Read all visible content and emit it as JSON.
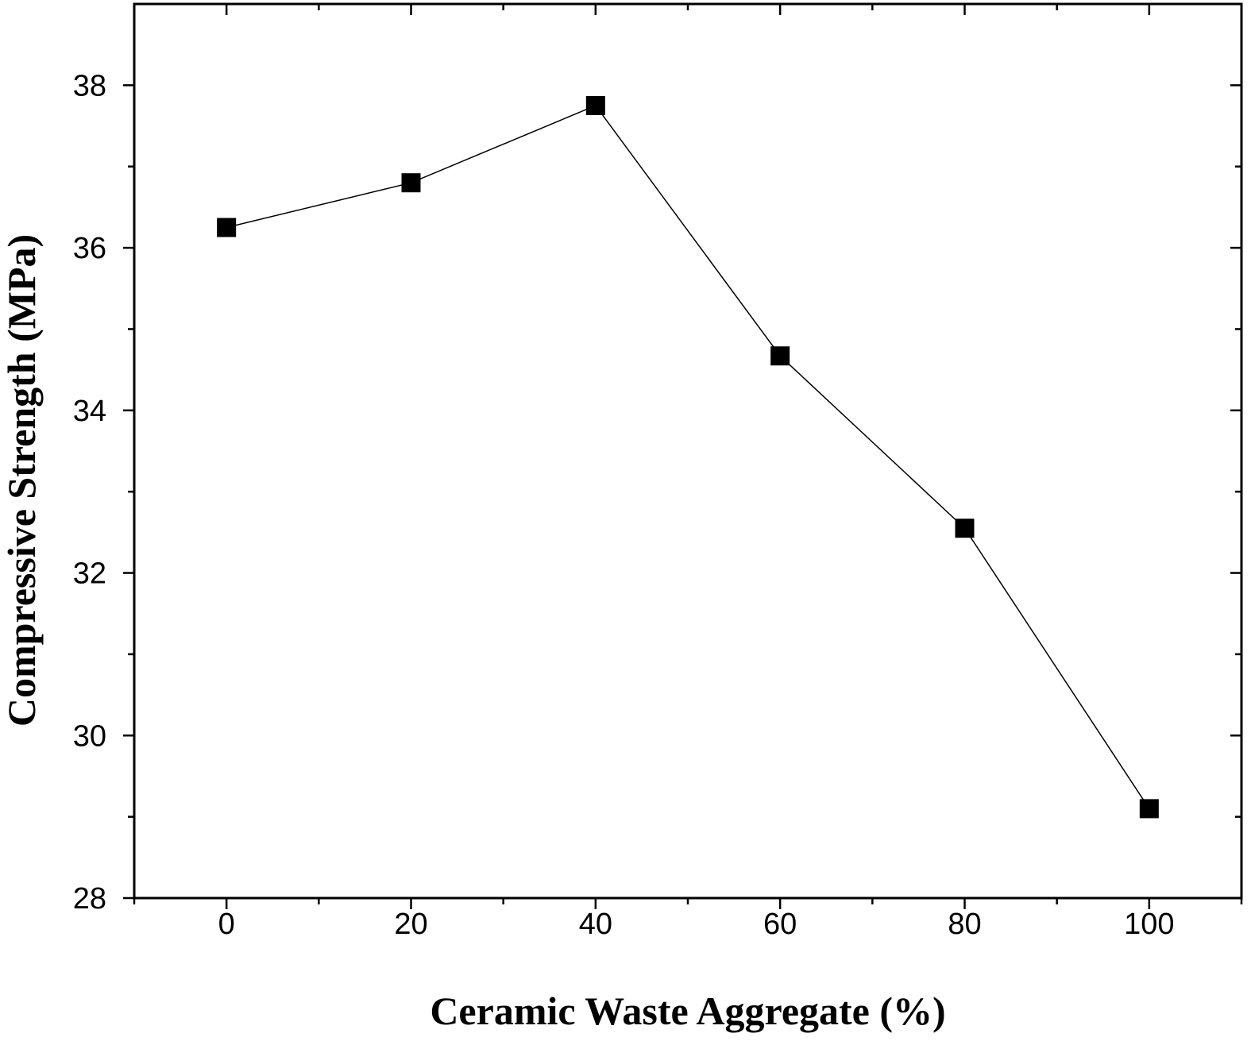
{
  "chart_data": {
    "type": "line",
    "title": "",
    "xlabel": "Ceramic Waste Aggregate (%)",
    "ylabel": "Compressive Strength (MPa)",
    "xlim": [
      -10,
      110
    ],
    "ylim": [
      28,
      39
    ],
    "xticks": [
      0,
      20,
      40,
      60,
      80,
      100
    ],
    "xtick_labels": [
      "0",
      "20",
      "40",
      "60",
      "80",
      "100"
    ],
    "x_minor_ticks": [
      -10,
      10,
      30,
      50,
      70,
      90,
      110
    ],
    "yticks": [
      28,
      30,
      32,
      34,
      36,
      38
    ],
    "ytick_labels": [
      "28",
      "30",
      "32",
      "34",
      "36",
      "38"
    ],
    "y_minor_ticks": [
      29,
      31,
      33,
      35,
      37
    ],
    "grid": false,
    "legend": "none",
    "marker": "filled-square",
    "line_color": "#000000",
    "marker_color": "#000000",
    "series": [
      {
        "x": [
          0,
          20,
          40,
          60,
          80,
          100
        ],
        "values": [
          36.25,
          36.8,
          37.75,
          34.67,
          32.55,
          29.1
        ]
      }
    ]
  }
}
